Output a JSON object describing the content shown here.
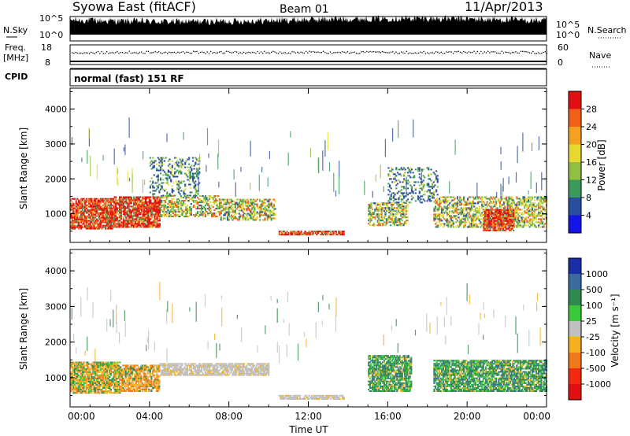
{
  "header": {
    "title": "Syowa East (fitACF)",
    "beam": "Beam 01",
    "date": "11/Apr/2013"
  },
  "noise_panel": {
    "left_label": "N.Sky",
    "right_label": "N.Search",
    "tick_top": "10^5",
    "tick_bottom": "10^0"
  },
  "freq_panel": {
    "left_label_1": "Freq.",
    "left_label_2": "[MHz]",
    "right_label": "Nave",
    "left_tick_top": "18",
    "left_tick_bottom": "8",
    "right_tick_top": "60",
    "right_tick_bottom": "0"
  },
  "cpid": {
    "label": "CPID",
    "mode": "normal (fast) 151 RF"
  },
  "chart_data": [
    {
      "type": "heatmap",
      "name": "power",
      "ylabel": "Slant Range [km]",
      "ylim": [
        180,
        4600
      ],
      "yticks": [
        "1000",
        "2000",
        "3000",
        "4000"
      ],
      "x_ticks": [
        "00:00",
        "04:00",
        "08:00",
        "12:00",
        "16:00",
        "20:00",
        "00:00"
      ],
      "colorbar": {
        "label": "Power [dB]",
        "ticks": [
          "28",
          "24",
          "20",
          "16",
          "12",
          "8",
          "4"
        ],
        "colors": [
          "#e01010",
          "#f06018",
          "#f5a020",
          "#e8d830",
          "#90c040",
          "#3a9a5a",
          "#284f9e",
          "#1414e6"
        ]
      },
      "echo_regions": [
        {
          "t0": 0.0,
          "t1": 2.2,
          "r0": 550,
          "r1": 1450,
          "level": "strong"
        },
        {
          "t0": 2.2,
          "t1": 4.5,
          "r0": 600,
          "r1": 1500,
          "level": "strong"
        },
        {
          "t0": 4.5,
          "t1": 7.5,
          "r0": 900,
          "r1": 1500,
          "level": "medium"
        },
        {
          "t0": 7.5,
          "t1": 10.3,
          "r0": 800,
          "r1": 1400,
          "level": "medium"
        },
        {
          "t0": 4.0,
          "t1": 6.5,
          "r0": 1500,
          "r1": 2600,
          "level": "weak"
        },
        {
          "t0": 10.5,
          "t1": 13.8,
          "r0": 380,
          "r1": 480,
          "level": "strong"
        },
        {
          "t0": 15.0,
          "t1": 17.0,
          "r0": 650,
          "r1": 1300,
          "level": "medium"
        },
        {
          "t0": 16.0,
          "t1": 18.5,
          "r0": 1300,
          "r1": 2300,
          "level": "weak"
        },
        {
          "t0": 18.3,
          "t1": 24.0,
          "r0": 600,
          "r1": 1500,
          "level": "medium"
        },
        {
          "t0": 20.8,
          "t1": 22.3,
          "r0": 500,
          "r1": 1100,
          "level": "strong"
        }
      ]
    },
    {
      "type": "heatmap",
      "name": "velocity",
      "ylabel": "Slant Range [km]",
      "xlabel": "Time UT",
      "ylim": [
        180,
        4600
      ],
      "yticks": [
        "1000",
        "2000",
        "3000",
        "4000"
      ],
      "x_ticks": [
        "00:00",
        "04:00",
        "08:00",
        "12:00",
        "16:00",
        "20:00",
        "00:00"
      ],
      "colorbar": {
        "label": "Velocity [m s⁻¹]",
        "ticks": [
          "1000",
          "500",
          "100",
          "25",
          "-25",
          "-100",
          "-500",
          "-1000"
        ],
        "colors": [
          "#1a2ea8",
          "#3a6aa0",
          "#2e8a4e",
          "#3cc83c",
          "#c0c0c0",
          "#f5b020",
          "#f07818",
          "#f02a10",
          "#e01010"
        ]
      },
      "echo_regions": [
        {
          "t0": 0.0,
          "t1": 2.5,
          "r0": 550,
          "r1": 1450,
          "level": "mixed"
        },
        {
          "t0": 2.5,
          "t1": 4.5,
          "r0": 600,
          "r1": 1350,
          "level": "negative"
        },
        {
          "t0": 4.5,
          "t1": 10.0,
          "r0": 1050,
          "r1": 1380,
          "level": "near-zero"
        },
        {
          "t0": 10.5,
          "t1": 13.8,
          "r0": 380,
          "r1": 480,
          "level": "near-zero"
        },
        {
          "t0": 15.0,
          "t1": 17.2,
          "r0": 600,
          "r1": 1600,
          "level": "positive"
        },
        {
          "t0": 18.3,
          "t1": 24.0,
          "r0": 600,
          "r1": 1500,
          "level": "positive"
        }
      ]
    }
  ]
}
